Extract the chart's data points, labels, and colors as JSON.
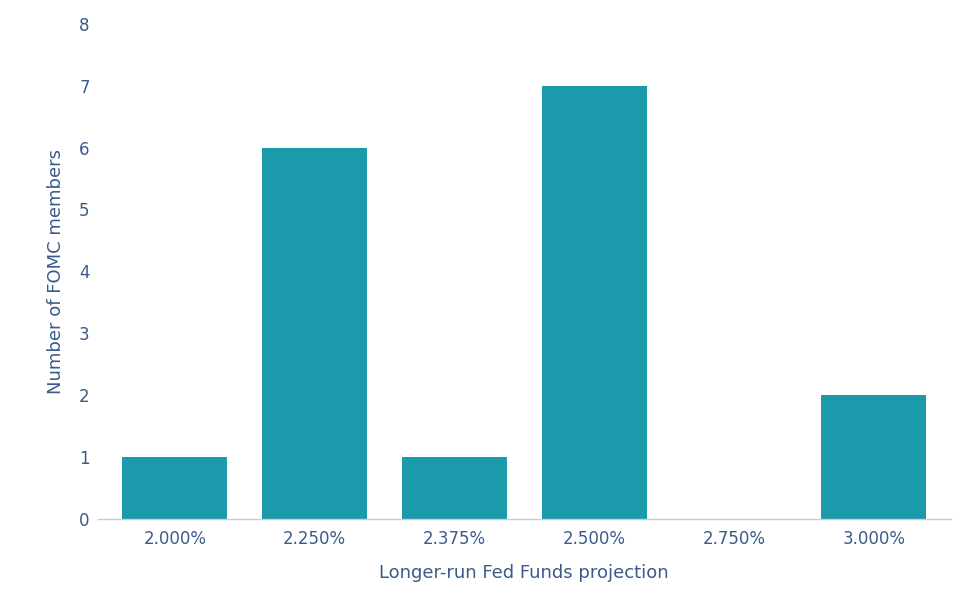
{
  "categories": [
    "2.000%",
    "2.250%",
    "2.375%",
    "2.500%",
    "2.750%",
    "3.000%"
  ],
  "values": [
    1,
    6,
    1,
    7,
    0,
    2
  ],
  "bar_color": "#1a9aaa",
  "xlabel": "Longer-run Fed Funds projection",
  "ylabel": "Number of FOMC members",
  "ylim": [
    0,
    8
  ],
  "yticks": [
    0,
    1,
    2,
    3,
    4,
    5,
    6,
    7,
    8
  ],
  "background_color": "#ffffff",
  "bar_width": 0.75,
  "tick_fontsize": 12,
  "label_fontsize": 13,
  "text_color": "#3a5a8a",
  "spine_color": "#cccccc"
}
